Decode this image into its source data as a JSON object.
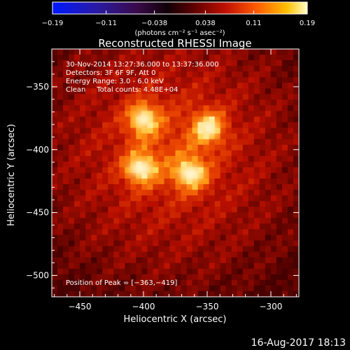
{
  "chart_data": {
    "type": "heatmap",
    "title": "Reconstructed RHESSI Image",
    "xlabel": "Heliocentric X (arcsec)",
    "ylabel": "Heliocentric Y (arcsec)",
    "xlim": [
      -472,
      -278
    ],
    "ylim": [
      -517,
      -320
    ],
    "x_ticks": [
      -450,
      -400,
      -350,
      -300
    ],
    "y_ticks": [
      -350,
      -400,
      -450,
      -500
    ],
    "colorbar": {
      "unit_label": "(photons cm⁻² s⁻¹ asec⁻²)",
      "ticks": [
        {
          "value": -0.19,
          "label": "−0.19"
        },
        {
          "value": -0.11,
          "label": "−0.11"
        },
        {
          "value": -0.038,
          "label": "−0.038"
        },
        {
          "value": 0.038,
          "label": "0.038"
        },
        {
          "value": 0.11,
          "label": "0.11"
        },
        {
          "value": 0.19,
          "label": "0.19"
        }
      ],
      "vmin": -0.19,
      "vmax": 0.19
    },
    "annotations": [
      "30-Nov-2014 13:27:36.000 to 13:37:36.000",
      "Detectors: 3F 6F 9F, Att 0",
      "Energy Range: 3.0 - 6.0 keV",
      "Clean     Total counts: 4.48E+04"
    ],
    "peak_label": "Position of Peak = [−363,−419]",
    "sources": [
      {
        "x": -400,
        "y": -376,
        "value": 0.14
      },
      {
        "x": -349,
        "y": -383,
        "value": 0.14
      },
      {
        "x": -402,
        "y": -415,
        "value": 0.19
      },
      {
        "x": -363,
        "y": -419,
        "value": 0.19
      }
    ]
  },
  "footer": {
    "timestamp": "16-Aug-2017 18:13"
  }
}
